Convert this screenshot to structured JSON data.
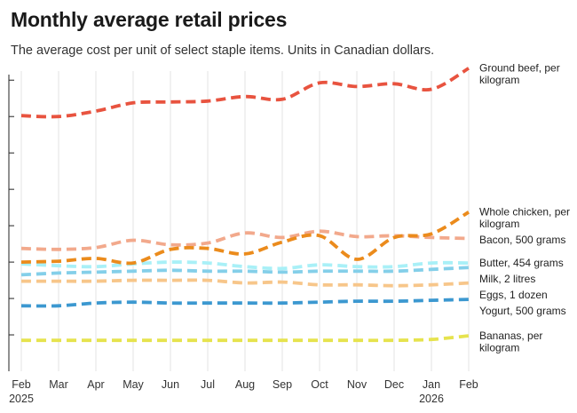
{
  "title": "Monthly average retail prices",
  "subtitle": "The average cost per unit of select staple items. Units in Canadian dollars.",
  "chart_data": {
    "type": "line",
    "title": "Monthly average retail prices",
    "subtitle": "The average cost per unit of select staple items. Units in Canadian dollars.",
    "xlabel": "",
    "ylabel": "",
    "ylim": [
      0,
      16.5
    ],
    "grid": "vertical",
    "x_tick_labels": [
      {
        "month": "Feb",
        "year": "2025"
      },
      {
        "month": "Mar",
        "year": ""
      },
      {
        "month": "Apr",
        "year": ""
      },
      {
        "month": "May",
        "year": ""
      },
      {
        "month": "Jun",
        "year": ""
      },
      {
        "month": "Jul",
        "year": ""
      },
      {
        "month": "Aug",
        "year": ""
      },
      {
        "month": "Sep",
        "year": ""
      },
      {
        "month": "Oct",
        "year": ""
      },
      {
        "month": "Nov",
        "year": ""
      },
      {
        "month": "Dec",
        "year": ""
      },
      {
        "month": "Jan",
        "year": "2026"
      },
      {
        "month": "Feb",
        "year": ""
      }
    ],
    "series": [
      {
        "name": "Ground beef, per kilogram",
        "label_lines": [
          "Ground beef, per",
          "kilogram"
        ],
        "color": "#e8533f",
        "values": [
          14.05,
          14.0,
          14.3,
          14.75,
          14.8,
          14.85,
          15.1,
          14.95,
          15.85,
          15.65,
          15.8,
          15.5,
          16.65
        ]
      },
      {
        "name": "Whole chicken, per kilogram",
        "label_lines": [
          "Whole chicken, per",
          "kilogram"
        ],
        "color": "#eb8b1c",
        "values": [
          6.0,
          6.05,
          6.2,
          5.95,
          6.7,
          6.75,
          6.45,
          7.1,
          7.45,
          6.15,
          7.35,
          7.55,
          8.75
        ]
      },
      {
        "name": "Bacon, 500 grams",
        "label_lines": [
          "Bacon, 500 grams"
        ],
        "color": "#f2a98c",
        "values": [
          6.75,
          6.7,
          6.8,
          7.2,
          6.95,
          7.05,
          7.6,
          7.35,
          7.7,
          7.4,
          7.45,
          7.35,
          7.3
        ]
      },
      {
        "name": "Butter, 454 grams",
        "label_lines": [
          "Butter, 454 grams"
        ],
        "color": "#a9f0f7",
        "values": [
          5.9,
          5.8,
          5.75,
          5.9,
          6.0,
          5.95,
          5.75,
          5.65,
          5.85,
          5.75,
          5.75,
          5.95,
          5.95
        ]
      },
      {
        "name": "Milk, 2 litres",
        "label_lines": [
          "Milk, 2 litres"
        ],
        "color": "#84cfe9",
        "values": [
          5.3,
          5.4,
          5.45,
          5.5,
          5.55,
          5.5,
          5.5,
          5.45,
          5.5,
          5.5,
          5.5,
          5.6,
          5.7
        ]
      },
      {
        "name": "Eggs, 1 dozen",
        "label_lines": [
          "Eggs, 1 dozen"
        ],
        "color": "#f7c68a",
        "values": [
          4.95,
          4.95,
          4.95,
          5.0,
          5.0,
          5.0,
          4.85,
          4.9,
          4.75,
          4.75,
          4.7,
          4.75,
          4.85
        ]
      },
      {
        "name": "Yogurt, 500 grams",
        "label_lines": [
          "Yogurt, 500 grams"
        ],
        "color": "#3c98d0",
        "values": [
          3.6,
          3.6,
          3.75,
          3.8,
          3.75,
          3.75,
          3.75,
          3.75,
          3.8,
          3.85,
          3.85,
          3.9,
          3.95
        ]
      },
      {
        "name": "Bananas, per kilogram",
        "label_lines": [
          "Bananas, per",
          "kilogram"
        ],
        "color": "#e6e34e",
        "values": [
          1.7,
          1.7,
          1.7,
          1.7,
          1.7,
          1.7,
          1.7,
          1.7,
          1.7,
          1.7,
          1.7,
          1.75,
          1.95
        ]
      }
    ]
  }
}
